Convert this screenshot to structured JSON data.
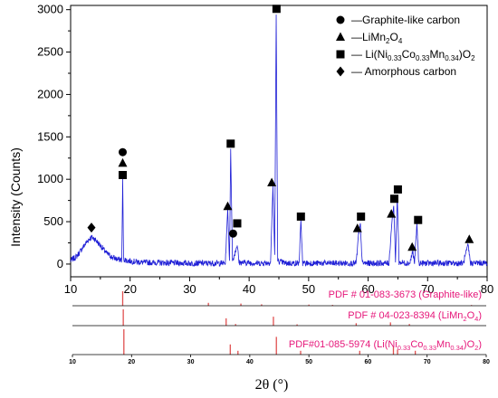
{
  "chart_data": {
    "type": "line",
    "xlabel": "2θ (°)",
    "ylabel": "Intensity (Counts)",
    "xlim": [
      10,
      80
    ],
    "ylim": [
      -150,
      3050
    ],
    "x_ticks": [
      "10",
      "20",
      "30",
      "40",
      "50",
      "60",
      "70",
      "80"
    ],
    "y_ticks": [
      "0",
      "500",
      "1000",
      "1500",
      "2000",
      "2500",
      "3000"
    ],
    "stick_ticks": [
      "10",
      "20",
      "30",
      "40",
      "50",
      "60",
      "70",
      "80"
    ],
    "series": [
      {
        "color": "#1f1fd6",
        "profile": [
          [
            10,
            40
          ],
          [
            11,
            90
          ],
          [
            12,
            190
          ],
          [
            13,
            290
          ],
          [
            13.5,
            315
          ],
          [
            14,
            300
          ],
          [
            15,
            220
          ],
          [
            16,
            130
          ],
          [
            17,
            80
          ],
          [
            18,
            55
          ],
          [
            18.6,
            50
          ],
          [
            18.75,
            1000
          ],
          [
            18.9,
            60
          ],
          [
            19.5,
            40
          ],
          [
            22,
            20
          ],
          [
            30,
            10
          ],
          [
            35,
            10
          ],
          [
            36.0,
            10
          ],
          [
            36.4,
            650
          ],
          [
            36.7,
            40
          ],
          [
            36.9,
            1350
          ],
          [
            37.2,
            30
          ],
          [
            38.0,
            230
          ],
          [
            38.3,
            20
          ],
          [
            42,
            10
          ],
          [
            43.6,
            20
          ],
          [
            44.0,
            920
          ],
          [
            44.3,
            100
          ],
          [
            44.55,
            2950
          ],
          [
            44.8,
            40
          ],
          [
            46,
            10
          ],
          [
            48.4,
            10
          ],
          [
            48.7,
            520
          ],
          [
            49.0,
            10
          ],
          [
            58,
            10
          ],
          [
            58.4,
            350
          ],
          [
            58.7,
            480
          ],
          [
            59.0,
            10
          ],
          [
            63.5,
            10
          ],
          [
            64.0,
            500
          ],
          [
            64.3,
            690
          ],
          [
            64.6,
            30
          ],
          [
            64.9,
            800
          ],
          [
            65.2,
            20
          ],
          [
            67,
            10
          ],
          [
            67.5,
            150
          ],
          [
            67.8,
            10
          ],
          [
            68.2,
            480
          ],
          [
            68.5,
            10
          ],
          [
            76,
            10
          ],
          [
            76.8,
            220
          ],
          [
            77.2,
            10
          ],
          [
            78,
            15
          ],
          [
            80,
            10
          ]
        ]
      }
    ],
    "markers": [
      {
        "type": "diamond",
        "x": 13.5,
        "y": 430
      },
      {
        "type": "circle",
        "x": 18.75,
        "y": 1320
      },
      {
        "type": "triangle",
        "x": 18.75,
        "y": 1190
      },
      {
        "type": "square",
        "x": 18.75,
        "y": 1050
      },
      {
        "type": "triangle",
        "x": 36.4,
        "y": 680
      },
      {
        "type": "circle",
        "x": 37.3,
        "y": 360
      },
      {
        "type": "square",
        "x": 36.9,
        "y": 1420
      },
      {
        "type": "square",
        "x": 38.0,
        "y": 480
      },
      {
        "type": "triangle",
        "x": 43.8,
        "y": 960
      },
      {
        "type": "square",
        "x": 44.6,
        "y": 3010
      },
      {
        "type": "square",
        "x": 48.7,
        "y": 560
      },
      {
        "type": "triangle",
        "x": 58.2,
        "y": 420
      },
      {
        "type": "square",
        "x": 58.8,
        "y": 560
      },
      {
        "type": "triangle",
        "x": 63.9,
        "y": 590
      },
      {
        "type": "square",
        "x": 64.4,
        "y": 770
      },
      {
        "type": "square",
        "x": 65.0,
        "y": 880
      },
      {
        "type": "triangle",
        "x": 67.4,
        "y": 200
      },
      {
        "type": "square",
        "x": 68.4,
        "y": 520
      },
      {
        "type": "triangle",
        "x": 77.0,
        "y": 290
      }
    ],
    "legend": {
      "position": "top-right",
      "entries": [
        {
          "marker": "circle",
          "prefix": "—Graphite-like carbon",
          "sub": []
        },
        {
          "marker": "triangle",
          "prefix": "—LiMn",
          "sub": [
            "2",
            "O",
            "4"
          ]
        },
        {
          "marker": "square",
          "prefix": "— Li(Ni",
          "sub": [
            "0.33",
            "Co",
            "0.33",
            "Mn",
            "0.34",
            ")O",
            "2"
          ]
        },
        {
          "marker": "diamond",
          "prefix": "— Amorphous carbon",
          "sub": []
        }
      ]
    },
    "reference_patterns": [
      {
        "label": "PDF # 01-083-3673 (Graphite-like)",
        "sticks": [
          [
            18.5,
            1.0
          ],
          [
            33.0,
            0.2
          ],
          [
            38.5,
            0.15
          ],
          [
            42.0,
            0.1
          ],
          [
            50.0,
            0.08
          ],
          [
            54.0,
            0.06
          ],
          [
            77.5,
            0.05
          ]
        ]
      },
      {
        "label_parts": [
          "PDF # 04-023-8394 (LiMn",
          "2",
          "O",
          "4",
          ")"
        ],
        "sticks": [
          [
            18.6,
            1.0
          ],
          [
            36.0,
            0.45
          ],
          [
            37.6,
            0.1
          ],
          [
            44.0,
            0.55
          ],
          [
            48.0,
            0.08
          ],
          [
            58.0,
            0.15
          ],
          [
            63.8,
            0.2
          ],
          [
            67.0,
            0.1
          ]
        ]
      },
      {
        "label_parts": [
          "PDF#01-085-5974 (Li(Ni",
          "0.33",
          "Co",
          "0.33",
          "Mn",
          "0.34",
          ")O",
          "2",
          ")"
        ],
        "sticks": [
          [
            18.7,
            1.0
          ],
          [
            36.7,
            0.4
          ],
          [
            38.0,
            0.15
          ],
          [
            44.5,
            0.7
          ],
          [
            48.6,
            0.15
          ],
          [
            58.6,
            0.15
          ],
          [
            64.3,
            0.3
          ],
          [
            65.0,
            0.2
          ],
          [
            68.0,
            0.15
          ]
        ]
      }
    ]
  }
}
